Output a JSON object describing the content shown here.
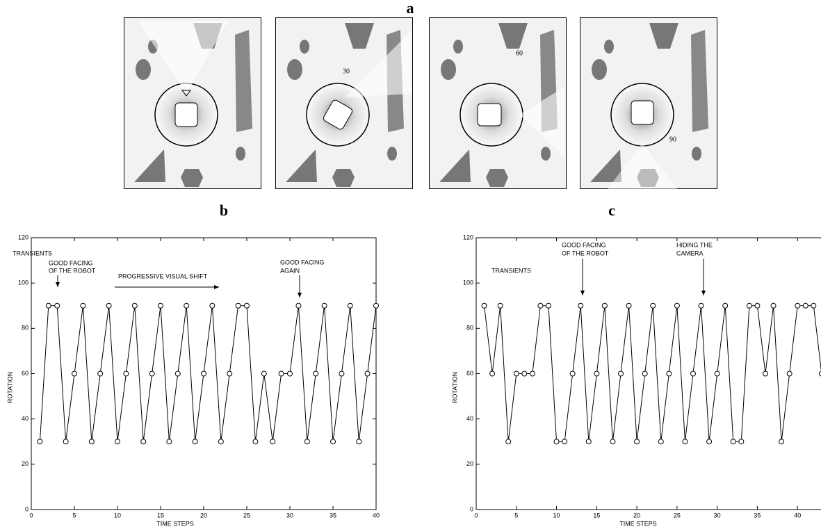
{
  "figure": {
    "panel_labels": [
      "a",
      "b",
      "c"
    ],
    "scene_angles": [
      "30",
      "60",
      "90"
    ]
  },
  "chart_data": [
    {
      "type": "line",
      "color": "#000000",
      "marker": "circle",
      "x": [
        1,
        2,
        3,
        4,
        5,
        6,
        7,
        8,
        9,
        10,
        11,
        12,
        13,
        14,
        15,
        16,
        17,
        18,
        19,
        20,
        21,
        22,
        23,
        24,
        25,
        26,
        27,
        28,
        29,
        30,
        31,
        32,
        33,
        34,
        35,
        36,
        37,
        38,
        39,
        40
      ],
      "values": [
        30,
        90,
        90,
        30,
        60,
        90,
        30,
        60,
        90,
        30,
        60,
        90,
        30,
        60,
        90,
        30,
        60,
        90,
        30,
        60,
        90,
        30,
        60,
        90,
        90,
        30,
        60,
        30,
        60,
        60,
        90,
        30,
        60,
        90,
        30,
        60,
        90,
        30,
        60,
        90
      ],
      "xlabel": "TIME STEPS",
      "ylabel": "ROTATION",
      "xlim": [
        0,
        40
      ],
      "ylim": [
        0,
        120
      ],
      "xticks": [
        0,
        5,
        10,
        15,
        20,
        25,
        30,
        35,
        40
      ],
      "yticks": [
        0,
        20,
        40,
        60,
        80,
        100,
        120
      ],
      "annotations": [
        {
          "lines": [
            "TRANSIENTS"
          ]
        },
        {
          "lines": [
            "GOOD FACING",
            "OF THE ROBOT"
          ]
        },
        {
          "lines": [
            "PROGRESSIVE VISUAL SHIFT"
          ]
        },
        {
          "lines": [
            "GOOD FACING",
            "AGAIN"
          ]
        }
      ]
    },
    {
      "type": "line",
      "color": "#000000",
      "marker": "circle",
      "x": [
        1,
        2,
        3,
        4,
        5,
        6,
        7,
        8,
        9,
        10,
        11,
        12,
        13,
        14,
        15,
        16,
        17,
        18,
        19,
        20,
        21,
        22,
        23,
        24,
        25,
        26,
        27,
        28,
        29,
        30,
        31,
        32,
        33,
        34,
        35,
        36,
        37,
        38,
        39,
        40,
        41,
        42,
        43
      ],
      "values": [
        90,
        60,
        90,
        30,
        60,
        60,
        60,
        90,
        90,
        30,
        30,
        60,
        90,
        30,
        60,
        90,
        30,
        60,
        90,
        30,
        60,
        90,
        30,
        60,
        90,
        30,
        60,
        90,
        30,
        60,
        90,
        30,
        30,
        90,
        90,
        60,
        90,
        30,
        60,
        90,
        90,
        90,
        60
      ],
      "xlabel": "TIME STEPS",
      "ylabel": "ROTATION",
      "xlim": [
        0,
        45
      ],
      "ylim": [
        0,
        120
      ],
      "xticks": [
        0,
        5,
        10,
        15,
        20,
        25,
        30,
        35,
        40
      ],
      "yticks": [
        0,
        20,
        40,
        60,
        80,
        100,
        120
      ],
      "annotations": [
        {
          "lines": [
            "TRANSIENTS"
          ]
        },
        {
          "lines": [
            "GOOD FACING",
            "OF THE ROBOT"
          ]
        },
        {
          "lines": [
            "HIDING THE",
            "CAMERA"
          ]
        }
      ]
    }
  ]
}
